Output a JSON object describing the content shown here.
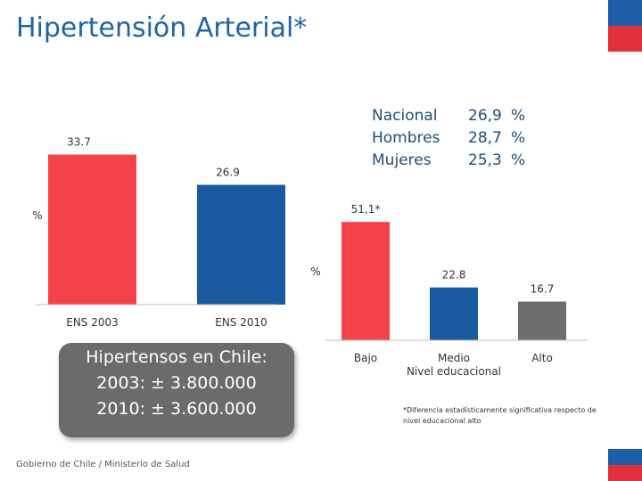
{
  "title": "Hipertensión Arterial*",
  "colors": {
    "red": "#f5434a",
    "blue": "#1a5aa0",
    "gray": "#6e6e6e",
    "title": "#1e63a8"
  },
  "national_stats": [
    {
      "label": "Nacional",
      "value": "26,9",
      "unit": "%"
    },
    {
      "label": "Hombres",
      "value": "28,7",
      "unit": "%"
    },
    {
      "label": "Mujeres",
      "value": "25,3",
      "unit": "%"
    }
  ],
  "info_box": {
    "heading": "Hipertensos en Chile:",
    "line1": "2003: ± 3.800.000",
    "line2": "2010: ± 3.600.000"
  },
  "footer": "Gobierno de Chile / Ministerio de Salud",
  "footnote": "*Diferencia estadísticamente significativa respecto de nivel educacional alto",
  "chart_data": [
    {
      "type": "bar",
      "categories": [
        "ENS 2003",
        "ENS 2010"
      ],
      "values": [
        33.7,
        26.9
      ],
      "data_labels": [
        "33.7",
        "26.9"
      ],
      "colors": [
        "#f5434a",
        "#1a5aa0"
      ],
      "ylabel": "%",
      "ylim": [
        0,
        36
      ]
    },
    {
      "type": "bar",
      "categories": [
        "Bajo",
        "Medio",
        "Alto"
      ],
      "values": [
        51.1,
        22.8,
        16.7
      ],
      "data_labels": [
        "51,1*",
        "22.8",
        "16.7"
      ],
      "colors": [
        "#f5434a",
        "#1a5aa0",
        "#6e6e6e"
      ],
      "xlabel": "Nivel educacional",
      "ylabel": "%",
      "ylim": [
        0,
        60
      ]
    }
  ]
}
